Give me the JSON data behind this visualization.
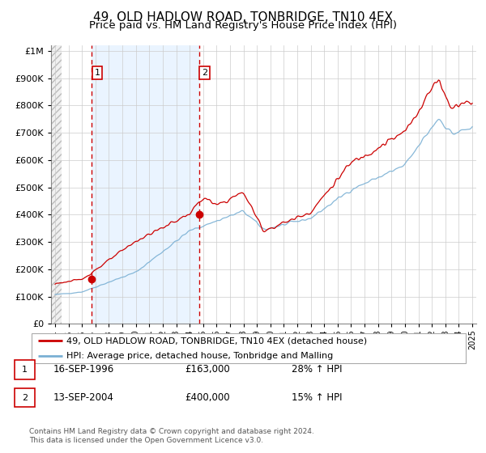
{
  "title": "49, OLD HADLOW ROAD, TONBRIDGE, TN10 4EX",
  "subtitle": "Price paid vs. HM Land Registry's House Price Index (HPI)",
  "ytick_values": [
    0,
    100000,
    200000,
    300000,
    400000,
    500000,
    600000,
    700000,
    800000,
    900000,
    1000000
  ],
  "ylim": [
    0,
    1020000
  ],
  "xlim_start": 1993.7,
  "xlim_end": 2025.3,
  "hpi_color": "#7ab0d4",
  "price_color": "#cc0000",
  "sale1_x": 1996.71,
  "sale1_y": 163000,
  "sale2_x": 2004.71,
  "sale2_y": 400000,
  "label1": "1",
  "label2": "2",
  "legend_sale_label": "49, OLD HADLOW ROAD, TONBRIDGE, TN10 4EX (detached house)",
  "legend_hpi_label": "HPI: Average price, detached house, Tonbridge and Malling",
  "table_rows": [
    {
      "num": "1",
      "date": "16-SEP-1996",
      "price": "£163,000",
      "change": "28% ↑ HPI"
    },
    {
      "num": "2",
      "date": "13-SEP-2004",
      "price": "£400,000",
      "change": "15% ↑ HPI"
    }
  ],
  "footer": "Contains HM Land Registry data © Crown copyright and database right 2024.\nThis data is licensed under the Open Government Licence v3.0.",
  "grid_color": "#cccccc",
  "title_fontsize": 11,
  "subtitle_fontsize": 9.5,
  "tick_fontsize": 8,
  "shade_between_color": "#ddeeff",
  "hatch_color": "#dddddd"
}
